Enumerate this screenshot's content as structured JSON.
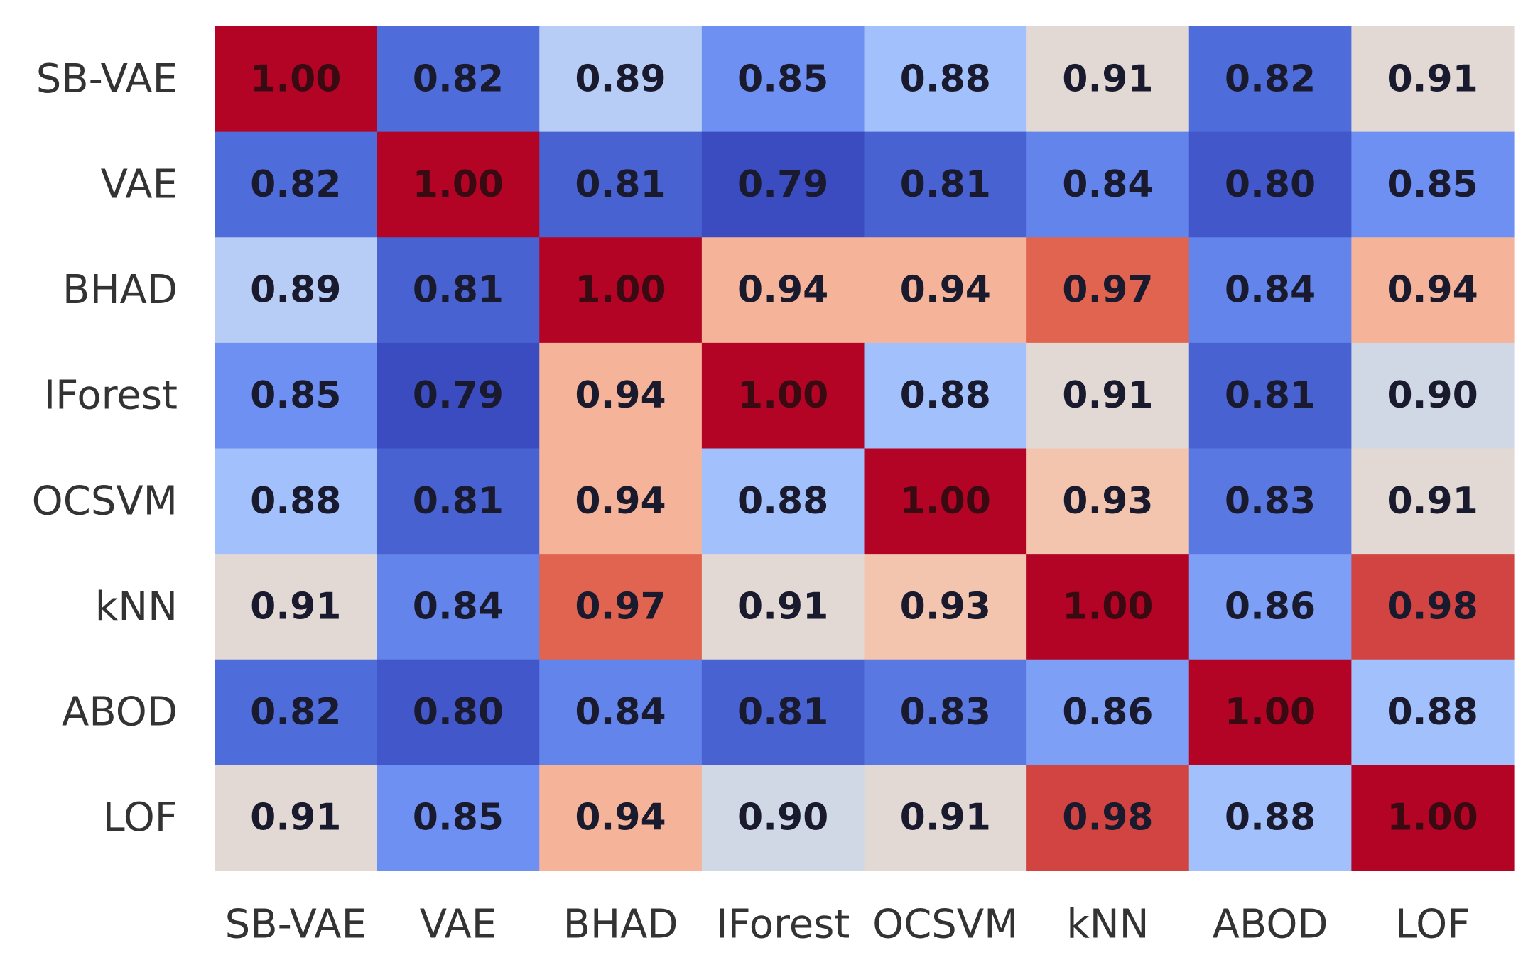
{
  "chart_data": {
    "type": "heatmap",
    "title": "",
    "xlabel": "",
    "ylabel": "",
    "x_labels": [
      "SB-VAE",
      "VAE",
      "BHAD",
      "IForest",
      "OCSVM",
      "kNN",
      "ABOD",
      "LOF"
    ],
    "y_labels": [
      "SB-VAE",
      "VAE",
      "BHAD",
      "IForest",
      "OCSVM",
      "kNN",
      "ABOD",
      "LOF"
    ],
    "values": [
      [
        1.0,
        0.82,
        0.89,
        0.85,
        0.88,
        0.91,
        0.82,
        0.91
      ],
      [
        0.82,
        1.0,
        0.81,
        0.79,
        0.81,
        0.84,
        0.8,
        0.85
      ],
      [
        0.89,
        0.81,
        1.0,
        0.94,
        0.94,
        0.97,
        0.84,
        0.94
      ],
      [
        0.85,
        0.79,
        0.94,
        1.0,
        0.88,
        0.91,
        0.81,
        0.9
      ],
      [
        0.88,
        0.81,
        0.94,
        0.88,
        1.0,
        0.93,
        0.83,
        0.91
      ],
      [
        0.91,
        0.84,
        0.97,
        0.91,
        0.93,
        1.0,
        0.86,
        0.98
      ],
      [
        0.82,
        0.8,
        0.84,
        0.81,
        0.83,
        0.86,
        1.0,
        0.88
      ],
      [
        0.91,
        0.85,
        0.94,
        0.9,
        0.91,
        0.98,
        0.88,
        1.0
      ]
    ],
    "value_format": "2 decimals",
    "colormap": "coolwarm",
    "annotation_color": "#1a1a2e",
    "grid": false,
    "legend": "none",
    "colorbar": false
  }
}
